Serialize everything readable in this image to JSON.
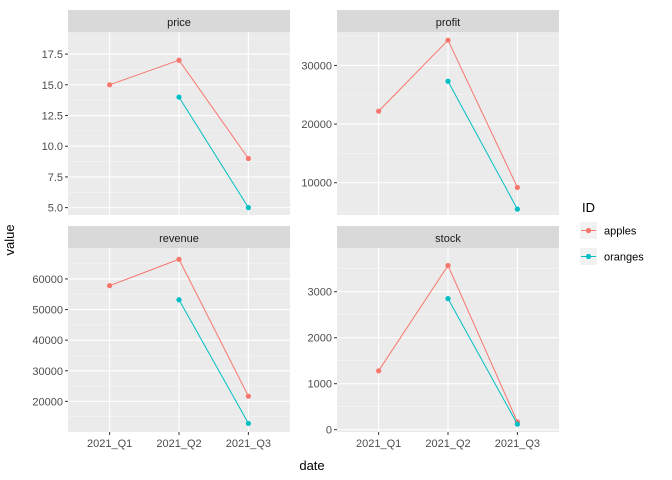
{
  "chart_data": {
    "type": "line",
    "xlabel": "date",
    "ylabel": "value",
    "categories": [
      "2021_Q1",
      "2021_Q2",
      "2021_Q3"
    ],
    "legend": {
      "title": "ID",
      "position": "right",
      "entries": [
        {
          "name": "apples",
          "color": "#F8766D"
        },
        {
          "name": "oranges",
          "color": "#00BFC4"
        }
      ]
    },
    "facets": [
      {
        "title": "price",
        "ylim": [
          4.4,
          19.3
        ],
        "yticks": [
          5.0,
          7.5,
          10.0,
          12.5,
          15.0,
          17.5
        ],
        "ytick_labels": [
          "5.0",
          "7.5",
          "10.0",
          "12.5",
          "15.0",
          "17.5"
        ],
        "series": [
          {
            "name": "apples",
            "x": [
              "2021_Q1",
              "2021_Q2",
              "2021_Q3"
            ],
            "values": [
              15,
              17,
              9
            ]
          },
          {
            "name": "oranges",
            "x": [
              "2021_Q2",
              "2021_Q3"
            ],
            "values": [
              14,
              5
            ]
          }
        ]
      },
      {
        "title": "profit",
        "ylim": [
          4500,
          35700
        ],
        "yticks": [
          10000,
          20000,
          30000
        ],
        "ytick_labels": [
          "10000",
          "20000",
          "30000"
        ],
        "series": [
          {
            "name": "apples",
            "x": [
              "2021_Q1",
              "2021_Q2",
              "2021_Q3"
            ],
            "values": [
              22200,
              34300,
              9200
            ]
          },
          {
            "name": "oranges",
            "x": [
              "2021_Q2",
              "2021_Q3"
            ],
            "values": [
              27300,
              5500
            ]
          }
        ]
      },
      {
        "title": "revenue",
        "ylim": [
          10000,
          70100
        ],
        "yticks": [
          20000,
          30000,
          40000,
          50000,
          60000
        ],
        "ytick_labels": [
          "20000",
          "30000",
          "40000",
          "50000",
          "60000"
        ],
        "series": [
          {
            "name": "apples",
            "x": [
              "2021_Q1",
              "2021_Q2",
              "2021_Q3"
            ],
            "values": [
              57800,
              66400,
              21700
            ]
          },
          {
            "name": "oranges",
            "x": [
              "2021_Q2",
              "2021_Q3"
            ],
            "values": [
              53200,
              12800
            ]
          }
        ]
      },
      {
        "title": "stock",
        "ylim": [
          -50,
          3950
        ],
        "yticks": [
          0,
          1000,
          2000,
          3000
        ],
        "ytick_labels": [
          "0",
          "1000",
          "2000",
          "3000"
        ],
        "series": [
          {
            "name": "apples",
            "x": [
              "2021_Q1",
              "2021_Q2",
              "2021_Q3"
            ],
            "values": [
              1280,
              3570,
              170
            ]
          },
          {
            "name": "oranges",
            "x": [
              "2021_Q2",
              "2021_Q3"
            ],
            "values": [
              2850,
              120
            ]
          }
        ]
      }
    ],
    "grid": true
  }
}
